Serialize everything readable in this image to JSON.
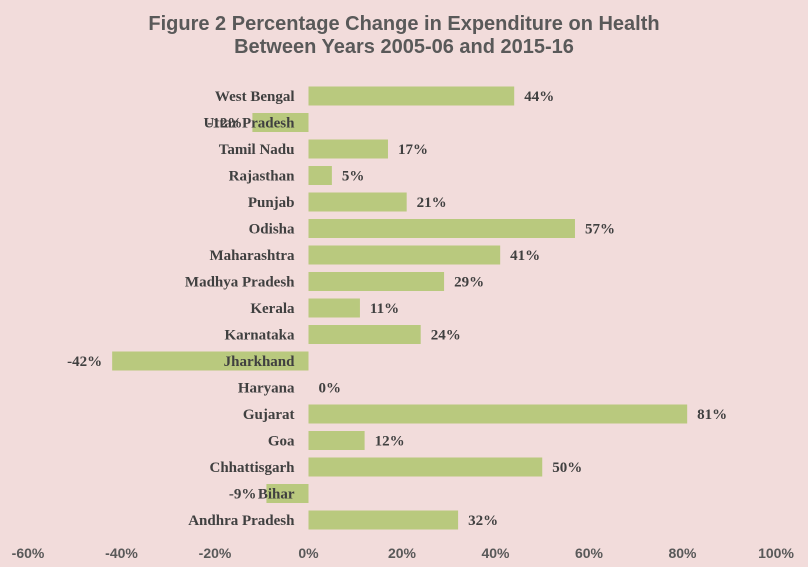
{
  "chart_data": {
    "type": "bar",
    "orientation": "horizontal",
    "title_line1": "Figure 2 Percentage Change in Expenditure on Health",
    "title_line2": "Between Years 2005-06 and 2015-16",
    "categories": [
      "West Bengal",
      "Uttar Pradesh",
      "Tamil Nadu",
      "Rajasthan",
      "Punjab",
      "Odisha",
      "Maharashtra",
      "Madhya Pradesh",
      "Kerala",
      "Karnataka",
      "Jharkhand",
      "Haryana",
      "Gujarat",
      "Goa",
      "Chhattisgarh",
      "Bihar",
      "Andhra Pradesh"
    ],
    "values": [
      44,
      -12,
      17,
      5,
      21,
      57,
      41,
      29,
      11,
      24,
      -42,
      0,
      81,
      12,
      50,
      -9,
      32
    ],
    "value_labels": [
      "44%",
      "-12%",
      "17%",
      "5%",
      "21%",
      "57%",
      "41%",
      "29%",
      "11%",
      "24%",
      "-42%",
      "0%",
      "81%",
      "12%",
      "50%",
      "-9%",
      "32%"
    ],
    "xlim": [
      -60,
      100
    ],
    "ticks": [
      -60,
      -40,
      -20,
      0,
      20,
      40,
      60,
      80,
      100
    ],
    "tick_labels": [
      "-60%",
      "-40%",
      "-20%",
      "0%",
      "20%",
      "40%",
      "60%",
      "80%",
      "100%"
    ],
    "xlabel": "",
    "ylabel": "",
    "grid": false,
    "bar_color": "#b9c97e",
    "background_color": "#f2dcdb",
    "text_color": "#404040"
  }
}
